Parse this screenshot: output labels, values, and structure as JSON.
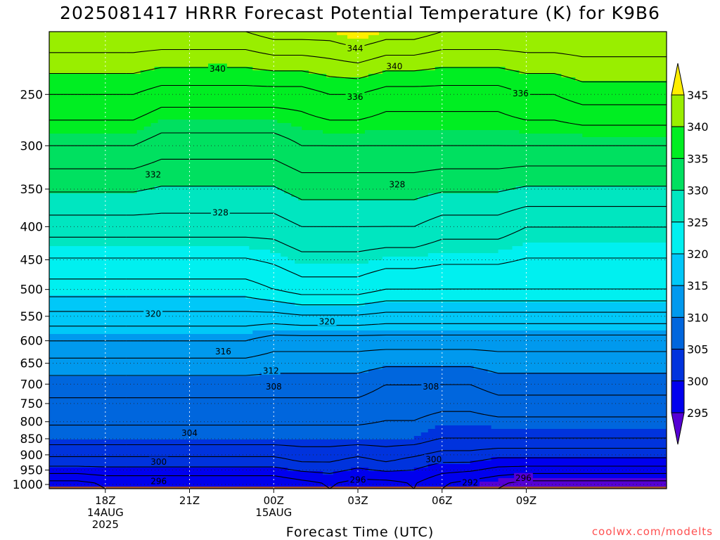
{
  "chart_data": {
    "type": "heatmap",
    "title": "2025081417 HRRR Forecast Potential Temperature (K) for K9B6",
    "xlabel": "Forecast Time (UTC)",
    "ylabel": "",
    "y_axis": {
      "scale": "log",
      "reversed": true,
      "range": [
        200,
        1015
      ],
      "ticks": [
        250,
        300,
        350,
        400,
        450,
        500,
        550,
        600,
        650,
        700,
        750,
        800,
        850,
        900,
        950,
        1000
      ]
    },
    "x_axis": {
      "range_hours": [
        -1,
        21
      ],
      "ticks": [
        {
          "hour": 1,
          "label": "18Z",
          "sub": [
            "14AUG",
            "2025"
          ]
        },
        {
          "hour": 4,
          "label": "21Z",
          "sub": []
        },
        {
          "hour": 7,
          "label": "00Z",
          "sub": [
            "15AUG"
          ]
        },
        {
          "hour": 10,
          "label": "03Z",
          "sub": []
        },
        {
          "hour": 13,
          "label": "06Z",
          "sub": []
        },
        {
          "hour": 16,
          "label": "09Z",
          "sub": []
        }
      ]
    },
    "grid": true,
    "times": [
      -1,
      0,
      1,
      2,
      3,
      4,
      5,
      6,
      7,
      8,
      9,
      10,
      11,
      12,
      13,
      14,
      15,
      16,
      17,
      18
    ],
    "levels_hpa": [
      1000,
      925,
      850,
      700,
      600,
      500,
      400,
      300,
      250,
      200
    ],
    "theta_k": [
      [
        295,
        295,
        296,
        296,
        296,
        296,
        296,
        296,
        296,
        297,
        298,
        297,
        297,
        298,
        296,
        295,
        294,
        293,
        293,
        293
      ],
      [
        301,
        301,
        301,
        301,
        301,
        301,
        301,
        301,
        301,
        302,
        302,
        301,
        302,
        301,
        300,
        300,
        299,
        299,
        299,
        299
      ],
      [
        305,
        305,
        305,
        305,
        305,
        305,
        305,
        305,
        305,
        305,
        305,
        305,
        305,
        305,
        304,
        304,
        304,
        304,
        304,
        304
      ],
      [
        309,
        309,
        309,
        309,
        309,
        309,
        309,
        309,
        309,
        309,
        309,
        309,
        308,
        308,
        308,
        308,
        309,
        309,
        309,
        309
      ],
      [
        314,
        314,
        314,
        314,
        314,
        314,
        314,
        314,
        313,
        313,
        313,
        313,
        313,
        313,
        313,
        313,
        313,
        313,
        313,
        313
      ],
      [
        321,
        321,
        321,
        321,
        321,
        321,
        321,
        321,
        322,
        323,
        323,
        323,
        322,
        322,
        322,
        322,
        322,
        322,
        322,
        322
      ],
      [
        327,
        327,
        327,
        327,
        327,
        327,
        327,
        327,
        327,
        328,
        328,
        328,
        328,
        328,
        327,
        327,
        327,
        326,
        326,
        326
      ],
      [
        334,
        334,
        334,
        334,
        333,
        333,
        333,
        333,
        333,
        334,
        334,
        334,
        334,
        334,
        334,
        334,
        334,
        334,
        334,
        334
      ],
      [
        338,
        338,
        338,
        338,
        337,
        337,
        337,
        337,
        337,
        337,
        338,
        338,
        337,
        337,
        337,
        337,
        337,
        338,
        338,
        339
      ],
      [
        344,
        344,
        344,
        344,
        344,
        344,
        344,
        344,
        345,
        345,
        345,
        346,
        345,
        345,
        344,
        344,
        344,
        344,
        344,
        344
      ]
    ],
    "contour_interval_k": 2,
    "contour_labels": [
      {
        "value": 344,
        "hour": 9.9,
        "level": 212
      },
      {
        "value": 340,
        "hour": 5.0,
        "level": 228
      },
      {
        "value": 340,
        "hour": 11.3,
        "level": 226
      },
      {
        "value": 336,
        "hour": 9.9,
        "level": 252
      },
      {
        "value": 336,
        "hour": 15.8,
        "level": 249
      },
      {
        "value": 332,
        "hour": 2.7,
        "level": 332
      },
      {
        "value": 328,
        "hour": 11.4,
        "level": 344
      },
      {
        "value": 328,
        "hour": 5.1,
        "level": 380
      },
      {
        "value": 320,
        "hour": 2.7,
        "level": 545
      },
      {
        "value": 320,
        "hour": 8.9,
        "level": 560
      },
      {
        "value": 316,
        "hour": 5.2,
        "level": 623
      },
      {
        "value": 312,
        "hour": 6.9,
        "level": 667
      },
      {
        "value": 308,
        "hour": 7.0,
        "level": 706
      },
      {
        "value": 308,
        "hour": 12.6,
        "level": 706
      },
      {
        "value": 304,
        "hour": 4.0,
        "level": 832
      },
      {
        "value": 300,
        "hour": 2.9,
        "level": 922
      },
      {
        "value": 300,
        "hour": 12.7,
        "level": 914
      },
      {
        "value": 296,
        "hour": 2.9,
        "level": 988
      },
      {
        "value": 296,
        "hour": 10.0,
        "level": 982
      },
      {
        "value": 296,
        "hour": 15.9,
        "level": 977
      },
      {
        "value": 292,
        "hour": 14.0,
        "level": 992
      }
    ],
    "colorbar": {
      "ticks": [
        295,
        300,
        305,
        310,
        315,
        320,
        325,
        330,
        335,
        340,
        345
      ],
      "bins": [
        {
          "min": 290,
          "max": 295,
          "color": "#5500d4"
        },
        {
          "min": 295,
          "max": 300,
          "color": "#0000ee"
        },
        {
          "min": 300,
          "max": 305,
          "color": "#0033dd"
        },
        {
          "min": 305,
          "max": 310,
          "color": "#0066dd"
        },
        {
          "min": 310,
          "max": 315,
          "color": "#0099ee"
        },
        {
          "min": 315,
          "max": 320,
          "color": "#00c8f8"
        },
        {
          "min": 320,
          "max": 325,
          "color": "#00f0f0"
        },
        {
          "min": 325,
          "max": 330,
          "color": "#00e6c0"
        },
        {
          "min": 330,
          "max": 335,
          "color": "#00e060"
        },
        {
          "min": 335,
          "max": 340,
          "color": "#00ee22"
        },
        {
          "min": 340,
          "max": 345,
          "color": "#99ee00"
        },
        {
          "min": 345,
          "max": 350,
          "color": "#ffee00"
        }
      ]
    },
    "ground_color": "#a0522d"
  },
  "credit": "coolwx.com/modelts"
}
